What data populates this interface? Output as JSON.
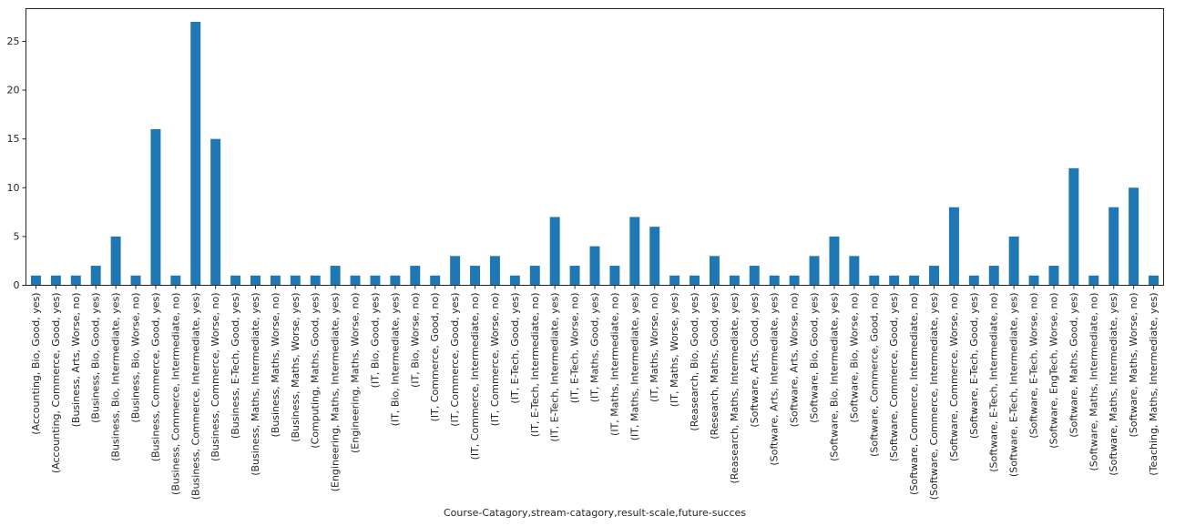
{
  "chart_data": {
    "type": "bar",
    "title": "",
    "xlabel": "Course-Catagory,stream-catagory,result-scale,future-succes",
    "ylabel": "",
    "ylim": [
      0,
      28.35
    ],
    "yticks": [
      0,
      5,
      10,
      15,
      20,
      25
    ],
    "grid": false,
    "bar_color": "#1f77b4",
    "categories": [
      "(Accounting, Bio, Good, yes)",
      "(Accounting, Commerce, Good, yes)",
      "(Business, Arts, Worse, no)",
      "(Business, Bio, Good, yes)",
      "(Business, Bio, Intermediate, yes)",
      "(Business, Bio, Worse, no)",
      "(Business, Commerce, Good, yes)",
      "(Business, Commerce, Intermediate, no)",
      "(Business, Commerce, Intermediate, yes)",
      "(Business, Commerce, Worse, no)",
      "(Business, E-Tech, Good, yes)",
      "(Business, Maths, Intermediate, yes)",
      "(Business, Maths, Worse, no)",
      "(Business, Maths, Worse, yes)",
      "(Computing, Maths, Good, yes)",
      "(Engineering, Maths, Intermediate, yes)",
      "(Engineering, Maths, Worse, no)",
      "(IT, Bio, Good, yes)",
      "(IT, Bio, Intermediate, yes)",
      "(IT, Bio, Worse, no)",
      "(IT, Commerce, Good, no)",
      "(IT, Commerce, Good, yes)",
      "(IT, Commerce, Intermediate, no)",
      "(IT, Commerce, Worse, no)",
      "(IT, E-Tech, Good, yes)",
      "(IT, E-Tech, Intermediate, no)",
      "(IT, E-Tech, Intermediate, yes)",
      "(IT, E-Tech, Worse, no)",
      "(IT, Maths, Good, yes)",
      "(IT, Maths, Intermediate, no)",
      "(IT, Maths, Intermediate, yes)",
      "(IT, Maths, Worse, no)",
      "(IT, Maths, Worse, yes)",
      "(Reasearch, Bio, Good, yes)",
      "(Research, Maths, Good, yes)",
      "(Reasearch, Maths, Intermediate, yes)",
      "(Software, Arts, Good, yes)",
      "(Software, Arts, Intermediate, yes)",
      "(Software, Arts, Worse, no)",
      "(Software, Bio, Good, yes)",
      "(Software, Bio, Intermediate, yes)",
      "(Software, Bio, Worse, no)",
      "(Software, Commerce, Good, no)",
      "(Software, Commerce, Good, yes)",
      "(Software, Commerce, Intermediate, no)",
      "(Software, Commerce, Intermediate, yes)",
      "(Software, Commerce, Worse, no)",
      "(Software, E-Tech, Good, yes)",
      "(Software, E-Tech, Intermediate, no)",
      "(Software, E-Tech, Intermediate, yes)",
      "(Software, E-Tech, Worse, no)",
      "(Software, EngTech, Worse, no)",
      "(Software, Maths, Good, yes)",
      "(Software, Maths, Intermediate, no)",
      "(Software, Maths, Intermediate, yes)",
      "(Software, Maths, Worse, no)",
      "(Teaching, Maths, Intermediate, yes)"
    ],
    "values": [
      1,
      1,
      1,
      2,
      5,
      1,
      16,
      1,
      27,
      15,
      1,
      1,
      1,
      1,
      1,
      2,
      1,
      1,
      1,
      2,
      1,
      3,
      2,
      3,
      1,
      2,
      7,
      2,
      4,
      2,
      7,
      6,
      1,
      1,
      3,
      1,
      2,
      1,
      1,
      3,
      5,
      3,
      1,
      1,
      1,
      2,
      8,
      1,
      2,
      5,
      1,
      2,
      12,
      1,
      8,
      10,
      1
    ]
  }
}
